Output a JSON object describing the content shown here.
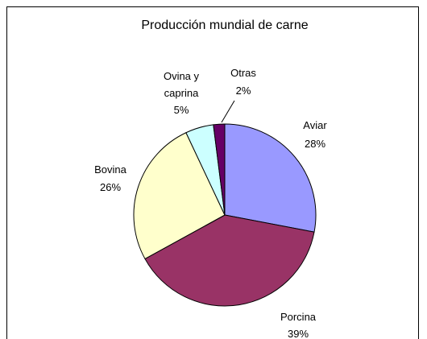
{
  "chart_data": {
    "type": "pie",
    "title": "Producción mundial de carne",
    "categories": [
      "Aviar",
      "Porcina",
      "Bovina",
      "Ovina y caprina",
      "Otras"
    ],
    "values": [
      28,
      39,
      26,
      5,
      2
    ],
    "value_labels": [
      "28%",
      "39%",
      "26%",
      "5%",
      "2%"
    ],
    "colors": [
      "#9999ff",
      "#993366",
      "#ffffcc",
      "#ccffff",
      "#660066"
    ]
  }
}
